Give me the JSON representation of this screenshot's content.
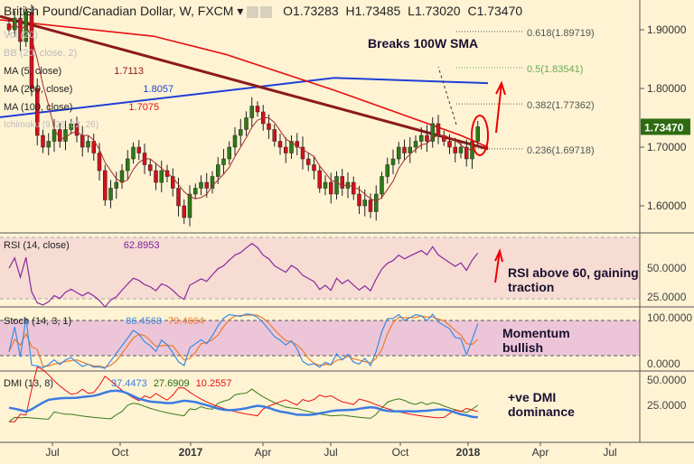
{
  "header": {
    "title": "British Pound/Canadian Dollar, W, FXCM",
    "open": "O1.73283",
    "high": "H1.73485",
    "low": "L1.73020",
    "close": "C1.73470"
  },
  "legend": {
    "vol": "Vol (20)",
    "bb": "BB (20, close, 2)",
    "ma5": {
      "label": "MA (5, close)",
      "value": "1.7113",
      "color": "#8b1a1a"
    },
    "ma200": {
      "label": "MA (200, close)",
      "value": "1.8057",
      "color": "#1f3fd6"
    },
    "ma100": {
      "label": "MA (100, close)",
      "value": "1.7075",
      "color": "#e81010"
    },
    "ichimoku": "Ichimoku (9, 26, 52, 26)"
  },
  "annotations": {
    "sma": "Breaks 100W SMA",
    "rsi": "RSI above 60, gaining traction",
    "stoch": "Momentum bullish",
    "dmi": "+ve DMI dominance"
  },
  "fib": [
    {
      "label": "0.618(1.89719)",
      "price": 1.89719,
      "color": "#555"
    },
    {
      "label": "0.5(1.83541)",
      "price": 1.83541,
      "color": "#6aaa50"
    },
    {
      "label": "0.382(1.77362)",
      "price": 1.77362,
      "color": "#555"
    },
    {
      "label": "0.236(1.69718)",
      "price": 1.69718,
      "color": "#555"
    }
  ],
  "price_axis": {
    "ticks": [
      "1.90000",
      "1.80000",
      "1.70000",
      "1.60000"
    ],
    "tick_values": [
      1.9,
      1.8,
      1.7,
      1.6
    ],
    "last": "1.73470",
    "last_value": 1.7347
  },
  "rsi": {
    "label": "RSI (14, close)",
    "value": "62.8953",
    "ticks": [
      "50.0000",
      "25.0000"
    ]
  },
  "stoch": {
    "label": "Stoch (14, 3, 1)",
    "k": "86.4568",
    "d": "79.4664",
    "ticks": [
      "100.0000",
      "0.0000"
    ]
  },
  "dmi": {
    "label": "DMI (13, 8)",
    "adx": "37.4473",
    "plus": "27.6909",
    "minus": "10.2557",
    "ticks": [
      "50.0000",
      "25.0000"
    ]
  },
  "x_axis": [
    "Jul",
    "Oct",
    "2017",
    "Apr",
    "Jul",
    "Oct",
    "2018",
    "Apr",
    "Jul"
  ],
  "chart_data": {
    "type": "candlestick",
    "title": "British Pound/Canadian Dollar, W, FXCM",
    "closes": [
      1.9,
      1.92,
      1.88,
      1.93,
      1.8,
      1.72,
      1.7,
      1.71,
      1.73,
      1.71,
      1.73,
      1.74,
      1.72,
      1.7,
      1.71,
      1.69,
      1.66,
      1.61,
      1.63,
      1.64,
      1.66,
      1.68,
      1.7,
      1.69,
      1.67,
      1.66,
      1.64,
      1.66,
      1.65,
      1.63,
      1.6,
      1.58,
      1.62,
      1.63,
      1.64,
      1.63,
      1.65,
      1.67,
      1.68,
      1.7,
      1.72,
      1.73,
      1.75,
      1.77,
      1.76,
      1.74,
      1.73,
      1.71,
      1.7,
      1.69,
      1.71,
      1.7,
      1.68,
      1.67,
      1.66,
      1.63,
      1.64,
      1.62,
      1.65,
      1.63,
      1.64,
      1.62,
      1.6,
      1.61,
      1.59,
      1.62,
      1.65,
      1.67,
      1.68,
      1.7,
      1.69,
      1.7,
      1.71,
      1.72,
      1.71,
      1.74,
      1.72,
      1.71,
      1.7,
      1.69,
      1.7,
      1.68,
      1.71,
      1.7347
    ],
    "ma200": [
      [
        0,
        1.751
      ],
      [
        370,
        1.818
      ],
      [
        540,
        1.809
      ]
    ],
    "ma100": [
      [
        0,
        1.917
      ],
      [
        170,
        1.889
      ],
      [
        250,
        1.858
      ],
      [
        370,
        1.797
      ],
      [
        510,
        1.72
      ],
      [
        540,
        1.7
      ]
    ],
    "trendline": [
      [
        1.923
      ],
      [
        1.697
      ]
    ],
    "ylim": [
      1.54,
      1.95
    ]
  }
}
